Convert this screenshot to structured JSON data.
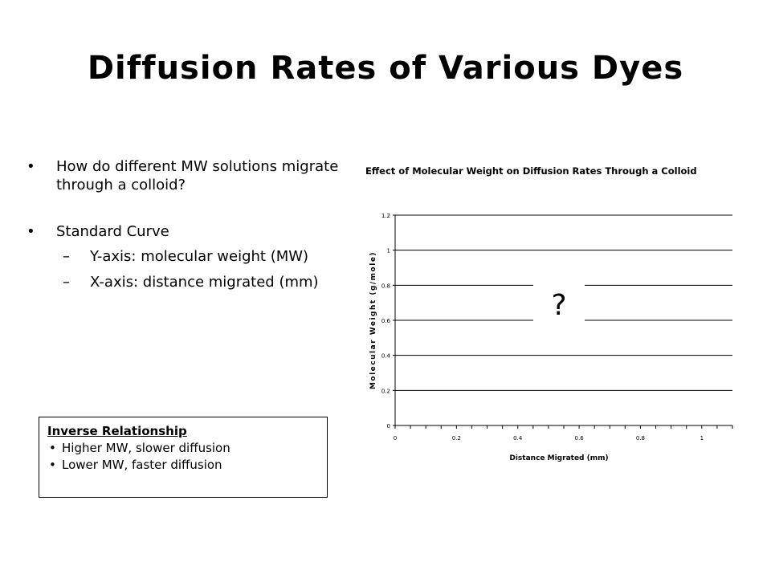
{
  "slide": {
    "title": "Diffusion Rates of Various Dyes"
  },
  "bullets": [
    {
      "text": "How do different MW solutions migrate through a colloid?"
    },
    {
      "text": "Standard Curve"
    }
  ],
  "sub_bullets": [
    {
      "text": "Y-axis:  molecular weight (MW)"
    },
    {
      "text": "X-axis:  distance migrated (mm)"
    }
  ],
  "inverse_box": {
    "title": "Inverse Relationship",
    "items": [
      "Higher MW, slower diffusion",
      "Lower MW, faster diffusion"
    ]
  },
  "placeholder": "?",
  "chart_data": {
    "type": "line",
    "title": "Effect of Molecular Weight on Diffusion Rates Through a Colloid",
    "xlabel": "Distance Migrated (mm)",
    "ylabel": "Molecular Weight (g/mole)",
    "xlim": [
      0,
      1.1
    ],
    "ylim": [
      0,
      1.2
    ],
    "x_ticks": [
      "0",
      "0.2",
      "0.4",
      "0.6",
      "0.8",
      "1"
    ],
    "y_ticks": [
      "0",
      "0.2",
      "0.4",
      "0.6",
      "0.8",
      "1",
      "1.2"
    ],
    "grid": "horizontal",
    "series": []
  }
}
